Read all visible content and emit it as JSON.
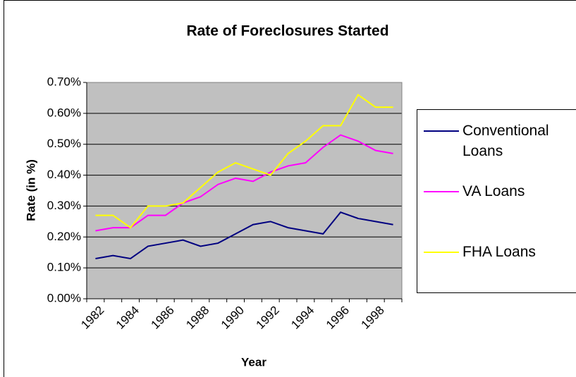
{
  "chart_data": {
    "type": "line",
    "title": "Rate of Foreclosures Started",
    "x_label": "Year",
    "y_label": "Rate (in %)",
    "categories": [
      "1982",
      null,
      "1984",
      null,
      "1986",
      null,
      "1988",
      null,
      "1990",
      null,
      "1992",
      null,
      "1994",
      null,
      "1996",
      null,
      "1998",
      null
    ],
    "series": [
      {
        "name": "Conventional Loans",
        "color": "#000080",
        "values": [
          0.13,
          0.14,
          0.13,
          0.17,
          0.18,
          0.19,
          0.17,
          0.18,
          0.21,
          0.24,
          0.25,
          0.23,
          0.22,
          0.21,
          0.28,
          0.26,
          0.25,
          0.24
        ]
      },
      {
        "name": "VA Loans",
        "color": "#ff00ff",
        "values": [
          0.22,
          0.23,
          0.23,
          0.27,
          0.27,
          0.31,
          0.33,
          0.37,
          0.39,
          0.38,
          0.41,
          0.43,
          0.44,
          0.49,
          0.53,
          0.51,
          0.48,
          0.47
        ]
      },
      {
        "name": "FHA Loans",
        "color": "#ffff00",
        "values": [
          0.27,
          0.27,
          0.23,
          0.3,
          0.3,
          0.31,
          0.36,
          0.41,
          0.44,
          0.42,
          0.4,
          0.47,
          0.51,
          0.56,
          0.56,
          0.66,
          0.62,
          0.62
        ]
      }
    ],
    "ylim": [
      0,
      0.7
    ],
    "yticks": [
      {
        "value": 0,
        "label": "0.00%"
      },
      {
        "value": 0.1,
        "label": "0.10%"
      },
      {
        "value": 0.2,
        "label": "0.20%"
      },
      {
        "value": 0.3,
        "label": "0.30%"
      },
      {
        "value": 0.4,
        "label": "0.40%"
      },
      {
        "value": 0.5,
        "label": "0.50%"
      },
      {
        "value": 0.6,
        "label": "0.60%"
      },
      {
        "value": 0.7,
        "label": "0.70%"
      }
    ],
    "grid": true,
    "legend": "right"
  }
}
